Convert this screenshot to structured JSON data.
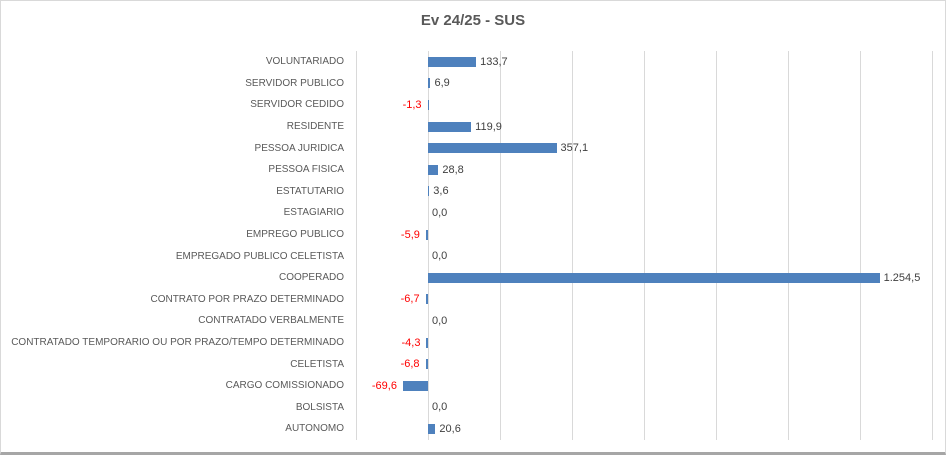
{
  "chart_data": {
    "type": "bar",
    "orientation": "horizontal",
    "title": "Ev 24/25 - SUS",
    "categories": [
      "VOLUNTARIADO",
      "SERVIDOR PUBLICO",
      "SERVIDOR CEDIDO",
      "RESIDENTE",
      "PESSOA JURIDICA",
      "PESSOA FISICA",
      "ESTATUTARIO",
      "ESTAGIARIO",
      "EMPREGO PUBLICO",
      "EMPREGADO PUBLICO CELETISTA",
      "COOPERADO",
      "CONTRATO POR PRAZO DETERMINADO",
      "CONTRATADO VERBALMENTE",
      "CONTRATADO TEMPORARIO OU POR PRAZO/TEMPO DETERMINADO",
      "CELETISTA",
      "CARGO COMISSIONADO",
      "BOLSISTA",
      "AUTONOMO"
    ],
    "values": [
      133.7,
      6.9,
      -1.3,
      119.9,
      357.1,
      28.8,
      3.6,
      0.0,
      -5.9,
      0.0,
      1254.5,
      -6.7,
      0.0,
      -4.3,
      -6.8,
      -69.6,
      0.0,
      20.6
    ],
    "value_labels": [
      "133,7",
      "6,9",
      "-1,3",
      "119,9",
      "357,1",
      "28,8",
      "3,6",
      "0,0",
      "-5,9",
      "0,0",
      "1.254,5",
      "-6,7",
      "0,0",
      "-4,3",
      "-6,8",
      "-69,6",
      "0,0",
      "20,6"
    ],
    "xlim": [
      -200,
      1400
    ],
    "gridline_step": 200,
    "grid": true,
    "legend": false,
    "colors": {
      "bar": "#4E81BD",
      "gridline": "#D9D9D9",
      "category_label": "#595959",
      "value_label": "#404040",
      "negative_value_label": "#FF0000",
      "title": "#595959"
    }
  }
}
